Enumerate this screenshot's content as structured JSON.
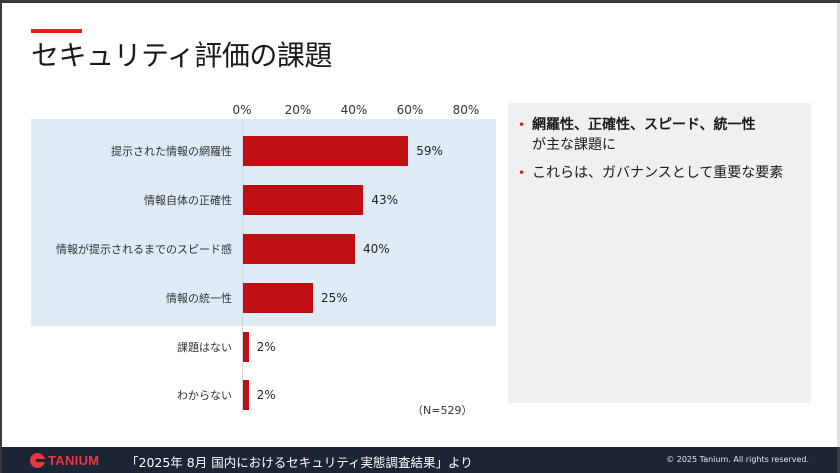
{
  "slide": {
    "title": "セキュリティ評価の課題",
    "accent_color": "#e2231a"
  },
  "chart_data": {
    "type": "bar",
    "orientation": "horizontal",
    "title": "",
    "xlabel": "",
    "ylabel": "",
    "xlim": [
      0,
      80
    ],
    "x_ticks": [
      "0%",
      "20%",
      "40%",
      "60%",
      "80%"
    ],
    "categories": [
      "提示された情報の網羅性",
      "情報自体の正確性",
      "情報が提示されるまでのスピード感",
      "情報の統一性",
      "課題はない",
      "わからない"
    ],
    "values": [
      59,
      43,
      40,
      25,
      2,
      2
    ],
    "value_labels": [
      "59%",
      "43%",
      "40%",
      "25%",
      "2%",
      "2%"
    ],
    "bar_color": "#c00f14",
    "highlighted_categories": [
      "提示された情報の網羅性",
      "情報自体の正確性",
      "情報が提示されるまでのスピード感",
      "情報の統一性"
    ],
    "highlight_color": "#ddebf7",
    "grid": false,
    "annotation": "（N=529）"
  },
  "side_panel": {
    "bullets": [
      {
        "bold": "網羅性、正確性、スピード、統一性",
        "text": "が主な課題に"
      },
      {
        "bold": "",
        "text": "これらは、ガバナンスとして重要な要素"
      }
    ]
  },
  "footer": {
    "logo": "TANIUM",
    "source": "「2025年 8月 国内におけるセキュリティ実態調査結果」より",
    "copyright": "© 2025 Tanium. All rights reserved."
  }
}
